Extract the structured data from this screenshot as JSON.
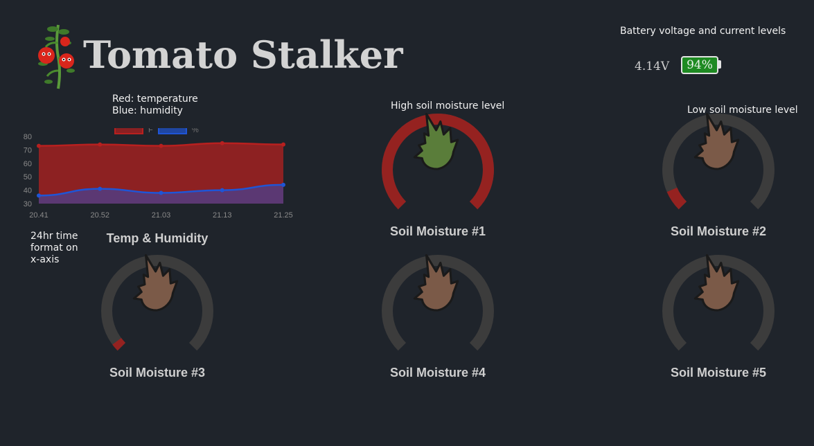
{
  "header": {
    "title": "Tomato Stalker",
    "logo_icon": "tomato-plant-icon"
  },
  "battery": {
    "note": "Battery voltage and current levels",
    "voltage": "4.14V",
    "percent_label": "94%",
    "percent": 94,
    "color": "#1e8a22"
  },
  "annotations": {
    "chart_legend_line1": "Red: temperature",
    "chart_legend_line2": "Blue: humidity",
    "axis_line1": "24hr time",
    "axis_line2": "format on",
    "axis_line3": "x-axis",
    "high_moisture": "High soil moisture level",
    "low_moisture": "Low soil moisture level"
  },
  "chart_data": {
    "type": "area",
    "title": "Temp & Humidity",
    "categories": [
      "20.41",
      "20.52",
      "21.03",
      "21.13",
      "21.25"
    ],
    "series": [
      {
        "name": "F",
        "values": [
          73,
          74,
          73,
          75,
          74
        ],
        "color": "#b8201f"
      },
      {
        "name": "%",
        "values": [
          36,
          41,
          38,
          40,
          44
        ],
        "color": "#1f55d6"
      }
    ],
    "yticks": [
      30,
      40,
      50,
      60,
      70,
      80
    ],
    "ylim": [
      30,
      80
    ],
    "legend": "top"
  },
  "gauges": [
    {
      "title": "Soil Moisture #1",
      "level": 1.0,
      "icon": "leaf-icon",
      "fill": "#5a7d3a"
    },
    {
      "title": "Soil Moisture #2",
      "level": 0.08,
      "icon": "dry-leaf-icon",
      "fill": "#7b5a48"
    },
    {
      "title": "Soil Moisture #3",
      "level": 0.03,
      "icon": "dry-leaf-icon",
      "fill": "#7b5a48"
    },
    {
      "title": "Soil Moisture #4",
      "level": 0,
      "icon": "dry-leaf-icon",
      "fill": "#7b5a48"
    },
    {
      "title": "Soil Moisture #5",
      "level": 0,
      "icon": "dry-leaf-icon",
      "fill": "#7b5a48"
    }
  ],
  "colors": {
    "gauge_track": "#3c3c3c",
    "gauge_value": "#952220",
    "background": "#1f242b"
  }
}
